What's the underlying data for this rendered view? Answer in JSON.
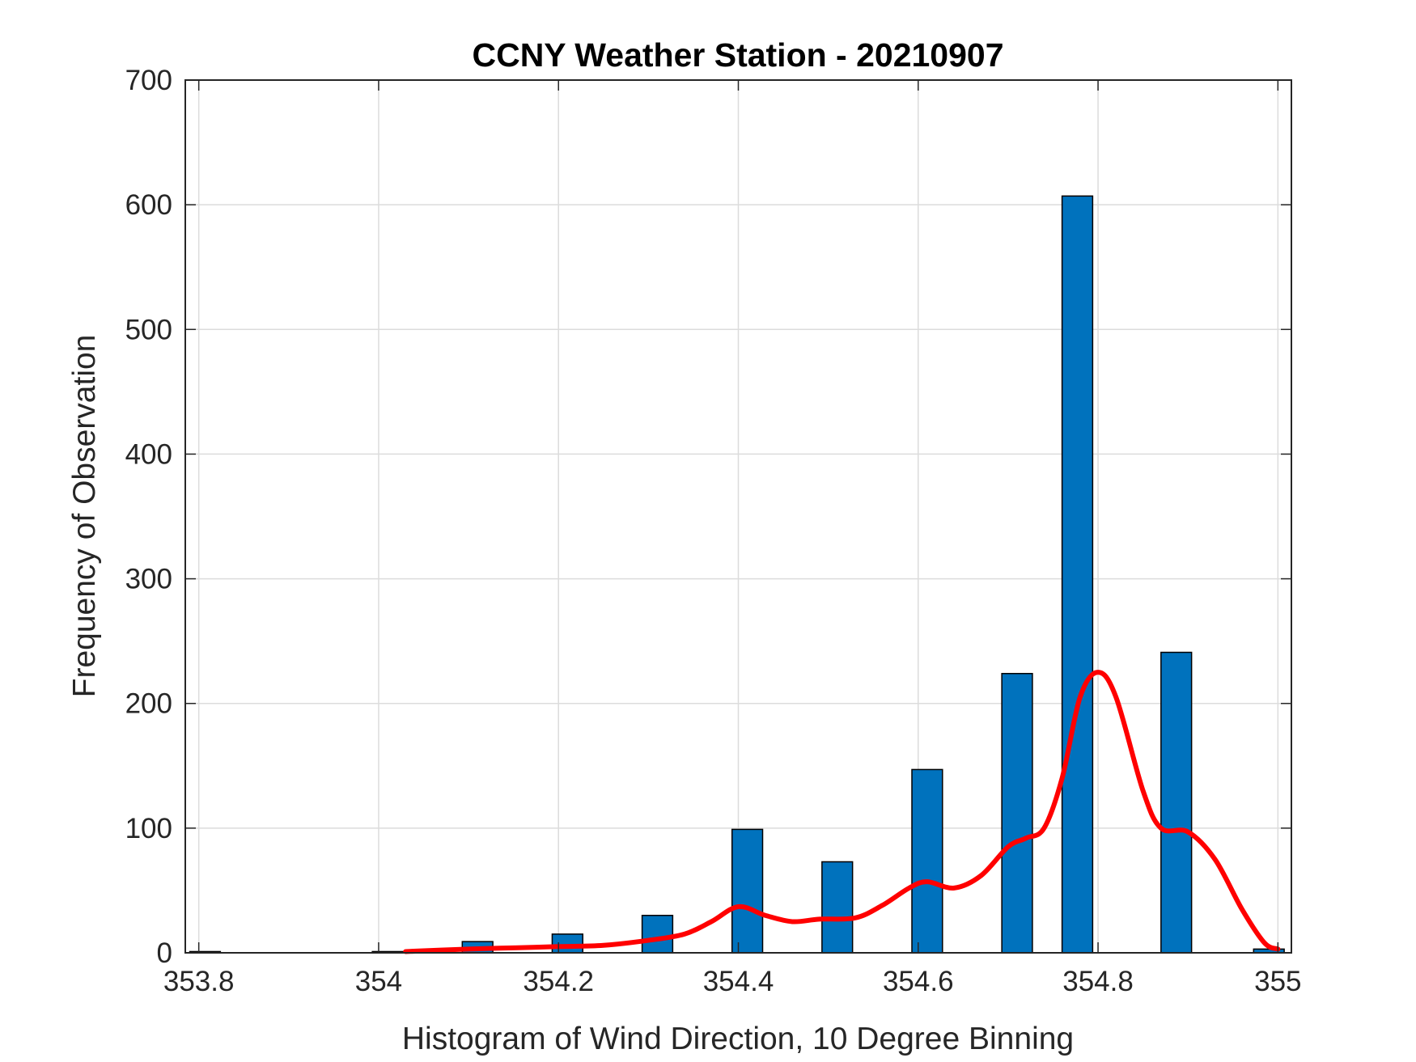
{
  "chart_data": {
    "type": "bar",
    "title": "CCNY Weather Station - 20210907",
    "xlabel": "Histogram of Wind Direction, 10 Degree Binning",
    "ylabel": "Frequency of Observation",
    "xlim": [
      353.785,
      355.015
    ],
    "ylim": [
      0,
      700
    ],
    "xticks": [
      353.8,
      354,
      354.2,
      354.4,
      354.6,
      354.8,
      355
    ],
    "xtick_labels": [
      "353.8",
      "354",
      "354.2",
      "354.4",
      "354.6",
      "354.8",
      "355"
    ],
    "yticks": [
      0,
      100,
      200,
      300,
      400,
      500,
      600,
      700
    ],
    "ytick_labels": [
      "0",
      "100",
      "200",
      "300",
      "400",
      "500",
      "600",
      "700"
    ],
    "grid": true,
    "bar_color": "#0072bd",
    "curve_color": "#ff0000",
    "bars": {
      "x": [
        353.807,
        354.01,
        354.11,
        354.21,
        354.31,
        354.41,
        354.51,
        354.61,
        354.71,
        354.777,
        354.887,
        354.99
      ],
      "values": [
        1,
        1,
        9,
        15,
        30,
        99,
        73,
        147,
        224,
        607,
        241,
        3
      ]
    },
    "curve": {
      "x": [
        354.03,
        354.1,
        354.15,
        354.2,
        354.25,
        354.3,
        354.34,
        354.37,
        354.4,
        354.43,
        354.46,
        354.49,
        354.53,
        354.56,
        354.59,
        354.61,
        354.64,
        354.67,
        354.7,
        354.72,
        354.74,
        354.76,
        354.78,
        354.8,
        354.82,
        354.85,
        354.87,
        354.9,
        354.93,
        354.96,
        354.985,
        355.0
      ],
      "values": [
        1,
        3,
        4,
        5,
        6,
        10,
        15,
        25,
        37,
        30,
        25,
        27,
        28,
        38,
        52,
        57,
        52,
        62,
        85,
        92,
        100,
        140,
        205,
        225,
        205,
        130,
        100,
        97,
        75,
        35,
        8,
        3
      ]
    }
  }
}
